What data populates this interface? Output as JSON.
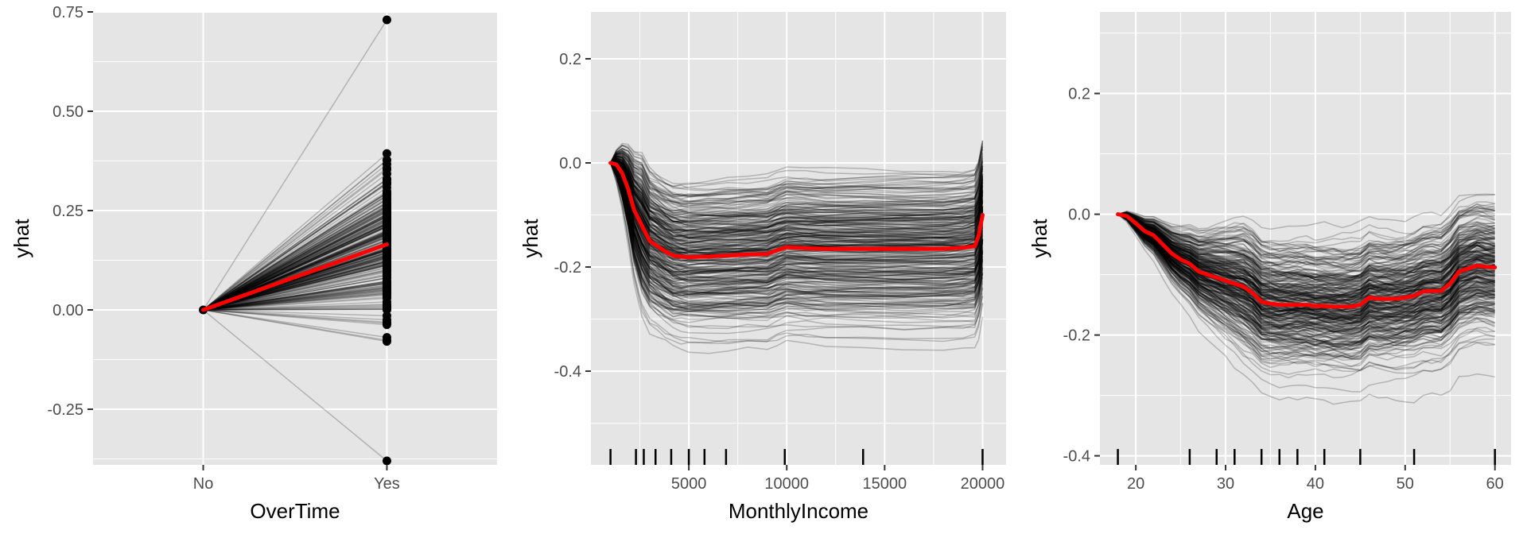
{
  "chart_data": [
    {
      "type": "line",
      "title": "",
      "xlabel": "OverTime",
      "ylabel": "yhat",
      "categories": [
        "No",
        "Yes"
      ],
      "ylim": [
        -0.39,
        0.75
      ],
      "yticks": [
        -0.25,
        0.0,
        0.25,
        0.5,
        0.75
      ],
      "ytick_labels": [
        "-0.25",
        "0.00",
        "0.25",
        "0.50",
        "0.75"
      ],
      "xtick_labels": [
        "No",
        "Yes"
      ],
      "average": [
        0.0,
        0.165
      ],
      "ice_yes_range": [
        -0.38,
        0.73
      ],
      "grid": true,
      "colors": {
        "panel": "#e5e5e5",
        "grid": "#ffffff",
        "ice": "#000000",
        "average": "#ff0000"
      }
    },
    {
      "type": "line",
      "title": "",
      "xlabel": "MonthlyIncome",
      "ylabel": "yhat",
      "xlim": [
        0,
        21200
      ],
      "ylim": [
        -0.58,
        0.29
      ],
      "xticks": [
        5000,
        10000,
        15000,
        20000
      ],
      "xtick_labels": [
        "5000",
        "10000",
        "15000",
        "20000"
      ],
      "yticks": [
        -0.4,
        -0.2,
        0.0,
        0.2
      ],
      "ytick_labels": [
        "-0.4",
        "-0.2",
        "0.0",
        "0.2"
      ],
      "average": {
        "x": [
          1000,
          1300,
          1600,
          1900,
          2200,
          2600,
          3000,
          3400,
          3800,
          4200,
          4600,
          5000,
          6000,
          7000,
          8000,
          9000,
          9500,
          10000,
          11000,
          12000,
          14000,
          16000,
          18000,
          19000,
          19600,
          19800,
          20000
        ],
        "y": [
          0.0,
          -0.003,
          -0.02,
          -0.05,
          -0.09,
          -0.12,
          -0.15,
          -0.16,
          -0.17,
          -0.178,
          -0.18,
          -0.181,
          -0.18,
          -0.178,
          -0.176,
          -0.175,
          -0.168,
          -0.162,
          -0.164,
          -0.165,
          -0.165,
          -0.165,
          -0.165,
          -0.163,
          -0.16,
          -0.14,
          -0.1
        ]
      },
      "rug": [
        1000,
        2300,
        2700,
        3300,
        4100,
        5000,
        5800,
        6900,
        9900,
        13900,
        20000
      ],
      "grid": true,
      "colors": {
        "panel": "#e5e5e5",
        "grid": "#ffffff",
        "ice": "#000000",
        "average": "#ff0000"
      }
    },
    {
      "type": "line",
      "title": "",
      "xlabel": "Age",
      "ylabel": "yhat",
      "xlim": [
        16.0,
        61.8
      ],
      "ylim": [
        -0.415,
        0.335
      ],
      "xticks": [
        20,
        30,
        40,
        50,
        60
      ],
      "xtick_labels": [
        "20",
        "30",
        "40",
        "50",
        "60"
      ],
      "yticks": [
        -0.4,
        -0.2,
        0.0,
        0.2
      ],
      "ytick_labels": [
        "-0.4",
        "-0.2",
        "0.0",
        "0.2"
      ],
      "average": {
        "x": [
          18,
          19,
          20,
          21,
          22,
          23,
          24,
          25,
          26,
          27,
          28,
          29,
          30,
          31,
          32,
          33,
          34,
          35,
          36,
          37,
          38,
          39,
          40,
          41,
          42,
          43,
          44,
          45,
          46,
          47,
          48,
          49,
          50,
          51,
          52,
          53,
          54,
          55,
          56,
          57,
          58,
          59,
          60
        ],
        "y": [
          0.0,
          -0.003,
          -0.015,
          -0.028,
          -0.035,
          -0.05,
          -0.065,
          -0.075,
          -0.082,
          -0.095,
          -0.1,
          -0.105,
          -0.11,
          -0.115,
          -0.12,
          -0.13,
          -0.145,
          -0.148,
          -0.15,
          -0.15,
          -0.15,
          -0.15,
          -0.152,
          -0.152,
          -0.153,
          -0.153,
          -0.153,
          -0.15,
          -0.138,
          -0.14,
          -0.14,
          -0.14,
          -0.138,
          -0.135,
          -0.128,
          -0.127,
          -0.127,
          -0.115,
          -0.095,
          -0.09,
          -0.085,
          -0.087,
          -0.088
        ]
      },
      "rug": [
        18,
        26,
        29,
        31,
        34,
        36,
        38,
        41,
        45,
        51,
        60
      ],
      "grid": true,
      "colors": {
        "panel": "#e5e5e5",
        "grid": "#ffffff",
        "ice": "#000000",
        "average": "#ff0000"
      }
    }
  ]
}
